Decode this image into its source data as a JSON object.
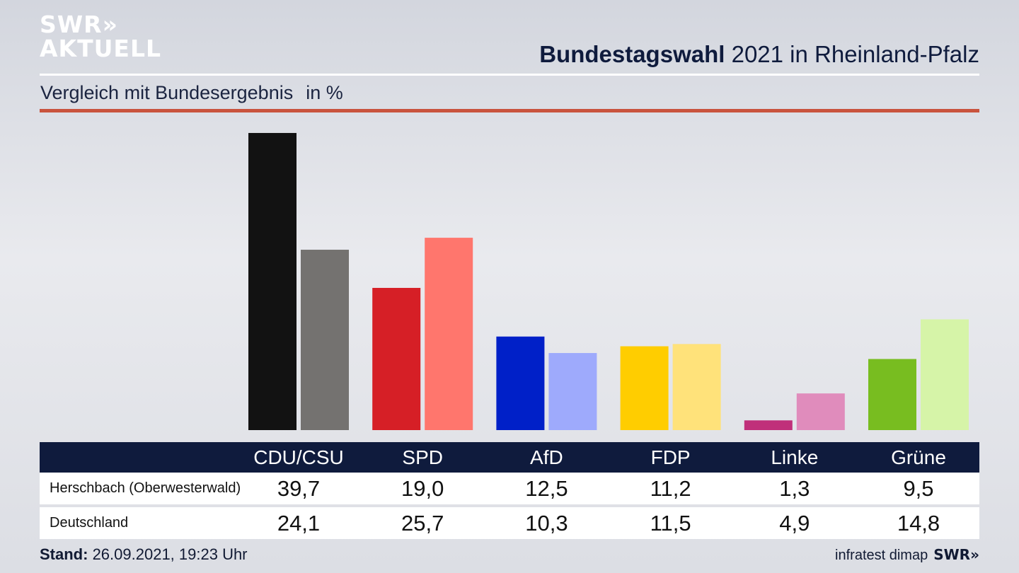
{
  "logo": {
    "line1": "SWR»",
    "line2": "AKTUELL"
  },
  "header": {
    "title_bold": "Bundestagswahl",
    "title_rest": " 2021 in Rheinland-Pfalz",
    "subtitle": "Vergleich mit Bundesergebnis",
    "unit": "in %"
  },
  "chart_data": {
    "type": "bar",
    "categories": [
      "CDU/CSU",
      "SPD",
      "AfD",
      "FDP",
      "Linke",
      "Grüne"
    ],
    "series": [
      {
        "name": "Herschbach (Oberwesterwald)",
        "values": [
          39.7,
          19.0,
          12.5,
          11.2,
          1.3,
          9.5
        ],
        "display": [
          "39,7",
          "19,0",
          "12,5",
          "11,2",
          "1,3",
          "9,5"
        ]
      },
      {
        "name": "Deutschland",
        "values": [
          24.1,
          25.7,
          10.3,
          11.5,
          4.9,
          14.8
        ],
        "display": [
          "24,1",
          "25,7",
          "10,3",
          "11,5",
          "4,9",
          "14,8"
        ]
      }
    ],
    "colors": {
      "local": [
        "#121212",
        "#d61f26",
        "#0020c8",
        "#ffcd00",
        "#c0307a",
        "#78bd20"
      ],
      "national": [
        "#747270",
        "#ff766d",
        "#9eaafc",
        "#ffe27a",
        "#e08cbc",
        "#d6f4a8"
      ]
    },
    "ylim": [
      0,
      40
    ],
    "grid": false
  },
  "footer": {
    "stand_label": "Stand:",
    "stand_value": " 26.09.2021, 19:23 Uhr",
    "source": "infratest dimap",
    "brand": "SWR»"
  }
}
